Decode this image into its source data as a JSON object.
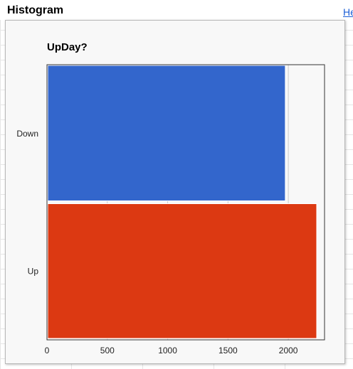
{
  "header": {
    "title": "Histogram",
    "help_link": "Help"
  },
  "colors": {
    "down": "#3366cc",
    "up": "#dc3912"
  },
  "chart_data": {
    "type": "bar",
    "orientation": "horizontal",
    "title": "UpDay?",
    "categories": [
      "Down",
      "Up"
    ],
    "values": [
      1975,
      2235
    ],
    "xlim": [
      0,
      2300
    ],
    "xticks": [
      0,
      500,
      1000,
      1500,
      2000
    ],
    "xlabel": "",
    "ylabel": "",
    "grid": true
  }
}
